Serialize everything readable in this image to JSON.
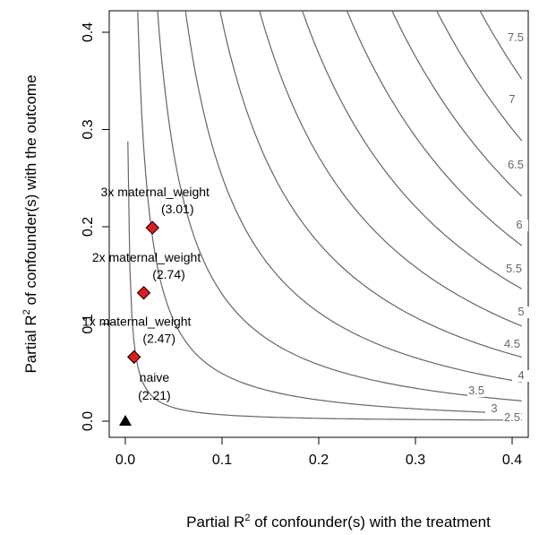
{
  "chart_data": {
    "type": "contour",
    "xlabel": {
      "prefix": "Partial R",
      "sup": "2",
      "suffix": " of confounder(s) with the treatment"
    },
    "ylabel": {
      "prefix": "Partial R",
      "sup": "2",
      "suffix": " of confounder(s) with the outcome"
    },
    "xlim": [
      0,
      0.4
    ],
    "ylim": [
      0,
      0.4
    ],
    "x_ticks": [
      "0.0",
      "0.1",
      "0.2",
      "0.3",
      "0.4"
    ],
    "y_ticks": [
      "0.0",
      "0.1",
      "0.2",
      "0.3",
      "0.4"
    ],
    "grid": false,
    "contour_levels": [
      "2.5",
      "3",
      "3.5",
      "4",
      "4.5",
      "5",
      "5.5",
      "6",
      "6.5",
      "7",
      "7.5"
    ],
    "unadjusted": {
      "label": "naive",
      "value": "(2.21)",
      "x": 0,
      "y": 0,
      "marker": "triangle",
      "color": "#000000"
    },
    "bounds": [
      {
        "label": "1x maternal_weight",
        "value": "(2.47)",
        "x": 0.009,
        "y": 0.066
      },
      {
        "label": "2x maternal_weight",
        "value": "(2.74)",
        "x": 0.019,
        "y": 0.132
      },
      {
        "label": "3x maternal_weight",
        "value": "(3.01)",
        "x": 0.028,
        "y": 0.199
      }
    ],
    "colors": {
      "contour": "#666666",
      "bound_marker": "#e31a1c",
      "axis": "#000000"
    }
  }
}
